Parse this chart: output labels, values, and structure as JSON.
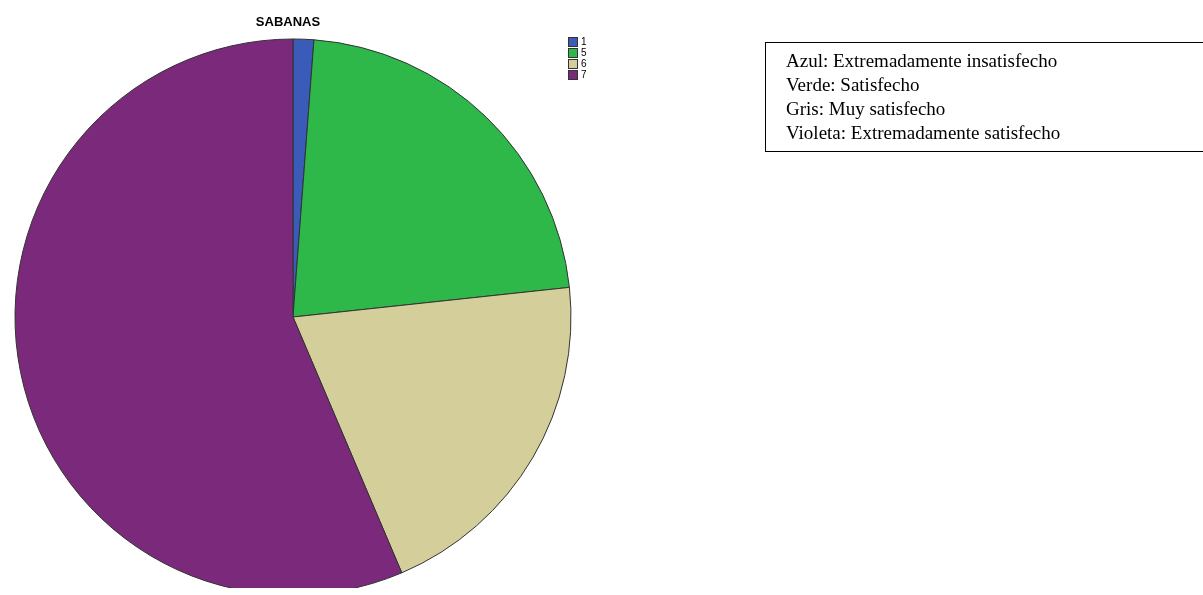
{
  "chart_data": {
    "type": "pie",
    "title": "SABANAS",
    "categories": [
      "1",
      "5",
      "6",
      "7"
    ],
    "values": [
      1.2,
      22.1,
      20.3,
      56.4
    ],
    "colors": [
      "#3a5bb8",
      "#2fb84a",
      "#d4cf9a",
      "#7b2a7b"
    ],
    "legend": "top right",
    "annotations": [
      "Azul: Extremadamente insatisfecho",
      "Verde: Satisfecho",
      "Gris: Muy satisfecho",
      "Violeta: Extremadamente satisfecho"
    ]
  }
}
